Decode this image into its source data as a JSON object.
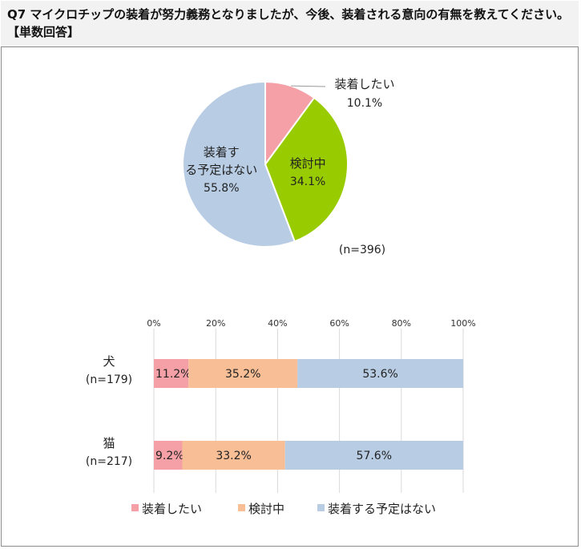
{
  "question": "Q7 マイクロチップの装着が努力義務となりましたが、今後、装着される意向の有無を教えてください。【単数回答】",
  "colors": {
    "pie": [
      "#f4a0a6",
      "#99cc00",
      "#b8cce4"
    ],
    "bar": [
      "#f4a0a6",
      "#f8be96",
      "#b8cce4"
    ]
  },
  "chart_data": [
    {
      "type": "pie",
      "title": "",
      "note": "(n=396)",
      "slices": [
        {
          "label": "装着したい",
          "value": 10.1,
          "label_text": "10.1%"
        },
        {
          "label": "検討中",
          "value": 34.1,
          "label_text": "34.1%"
        },
        {
          "label": "装着する予定はない",
          "value": 55.8,
          "label_text": "55.8%"
        }
      ]
    },
    {
      "type": "bar",
      "orientation": "horizontal-stacked-100",
      "categories": [
        {
          "name": "犬",
          "n": "(n=179)"
        },
        {
          "name": "猫",
          "n": "(n=217)"
        }
      ],
      "series": [
        {
          "name": "装着したい",
          "values": [
            11.2,
            9.2
          ]
        },
        {
          "name": "検討中",
          "values": [
            35.2,
            33.2
          ]
        },
        {
          "name": "装着する予定はない",
          "values": [
            53.6,
            57.6
          ]
        }
      ],
      "xticks": [
        "0%",
        "20%",
        "40%",
        "60%",
        "80%",
        "100%"
      ],
      "xlim": [
        0,
        100
      ],
      "legend": "bottom"
    }
  ]
}
